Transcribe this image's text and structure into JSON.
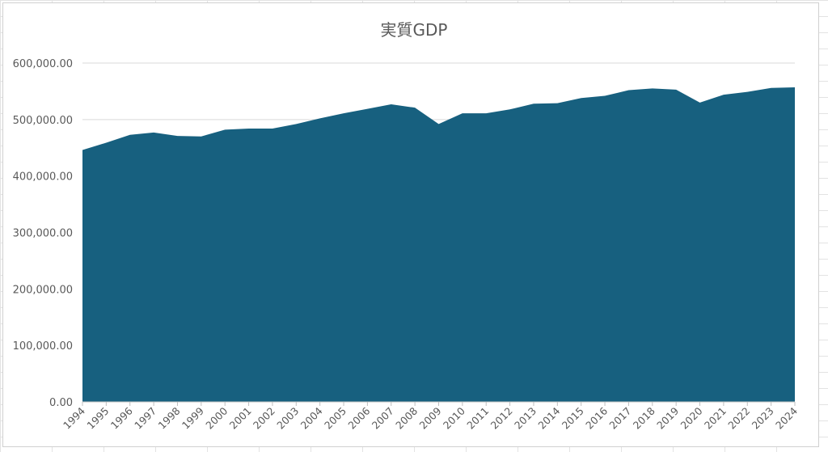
{
  "chart_data": {
    "type": "area",
    "title": "実質GDP",
    "xlabel": "",
    "ylabel": "",
    "x": [
      "1994",
      "1995",
      "1996",
      "1997",
      "1998",
      "1999",
      "2000",
      "2001",
      "2002",
      "2003",
      "2004",
      "2005",
      "2006",
      "2007",
      "2008",
      "2009",
      "2010",
      "2011",
      "2012",
      "2013",
      "2014",
      "2015",
      "2016",
      "2017",
      "2018",
      "2019",
      "2020",
      "2021",
      "2022",
      "2023",
      "2024"
    ],
    "series": [
      {
        "values": [
          446000,
          459000,
          473000,
          477000,
          471000,
          470000,
          482000,
          484000,
          484000,
          492000,
          502000,
          511000,
          519000,
          527000,
          521000,
          492000,
          511000,
          511000,
          518000,
          528000,
          529000,
          538000,
          542000,
          552000,
          555000,
          553000,
          530000,
          544000,
          549000,
          556000,
          557000
        ],
        "color": "#17607f"
      }
    ],
    "ylim": [
      0,
      600000
    ],
    "yticks": [
      "0.00",
      "100,000.00",
      "200,000.00",
      "300,000.00",
      "400,000.00",
      "500,000.00",
      "600,000.00"
    ],
    "grid": true,
    "legend": "none"
  }
}
